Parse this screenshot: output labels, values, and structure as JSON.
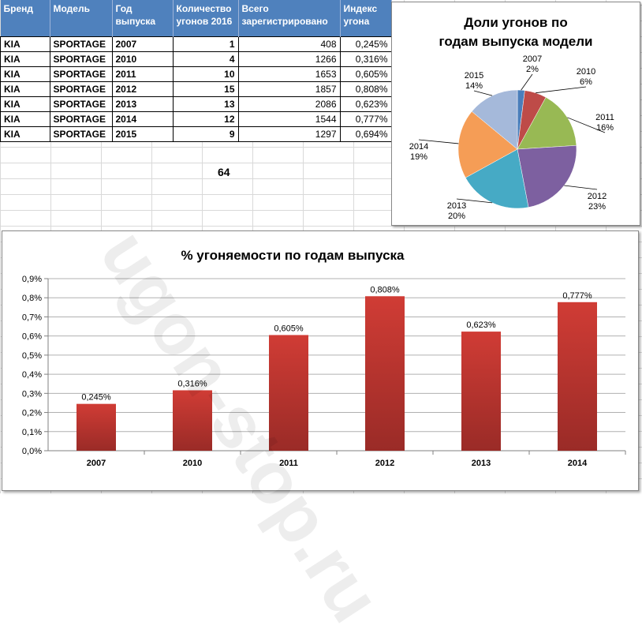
{
  "table": {
    "headers": [
      "Бренд",
      "Модель",
      "Год выпуска",
      "Количество угонов 2016",
      "Всего зарегистрировано",
      "Индекс угона"
    ],
    "rows": [
      [
        "KIA",
        "SPORTAGE",
        "2007",
        "1",
        "408",
        "0,245%"
      ],
      [
        "KIA",
        "SPORTAGE",
        "2010",
        "4",
        "1266",
        "0,316%"
      ],
      [
        "KIA",
        "SPORTAGE",
        "2011",
        "10",
        "1653",
        "0,605%"
      ],
      [
        "KIA",
        "SPORTAGE",
        "2012",
        "15",
        "1857",
        "0,808%"
      ],
      [
        "KIA",
        "SPORTAGE",
        "2013",
        "13",
        "2086",
        "0,623%"
      ],
      [
        "KIA",
        "SPORTAGE",
        "2014",
        "12",
        "1544",
        "0,777%"
      ],
      [
        "KIA",
        "SPORTAGE",
        "2015",
        "9",
        "1297",
        "0,694%"
      ]
    ],
    "total": "64"
  },
  "watermark": "ugon-stop.ru",
  "chart_data": [
    {
      "type": "pie",
      "title": "Доли угонов по годам выпуска модели",
      "categories": [
        "2007",
        "2010",
        "2011",
        "2012",
        "2013",
        "2014",
        "2015"
      ],
      "values": [
        2,
        6,
        16,
        23,
        20,
        19,
        14
      ],
      "value_labels": [
        "2%",
        "6%",
        "16%",
        "23%",
        "20%",
        "19%",
        "14%"
      ],
      "colors": [
        "#4a7ebb",
        "#be4b48",
        "#98b954",
        "#7d60a0",
        "#46aac5",
        "#f59d56",
        "#a5b9da"
      ]
    },
    {
      "type": "bar",
      "title": "% угоняемости по годам выпуска",
      "categories": [
        "2007",
        "2010",
        "2011",
        "2012",
        "2013",
        "2014"
      ],
      "values": [
        0.245,
        0.316,
        0.605,
        0.808,
        0.623,
        0.777
      ],
      "value_labels": [
        "0,245%",
        "0,316%",
        "0,605%",
        "0,808%",
        "0,623%",
        "0,777%"
      ],
      "ylim": [
        0,
        0.9
      ],
      "yticks": [
        "0,0%",
        "0,1%",
        "0,2%",
        "0,3%",
        "0,4%",
        "0,5%",
        "0,6%",
        "0,7%",
        "0,8%",
        "0,9%"
      ],
      "grid": true,
      "color": "#c0392b"
    }
  ]
}
